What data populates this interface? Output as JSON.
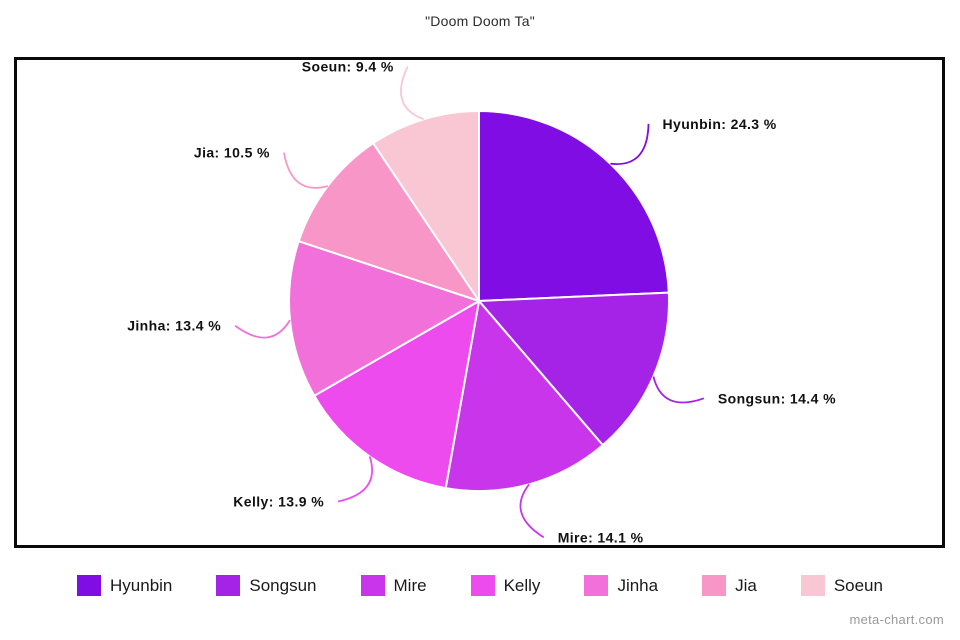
{
  "title": "\"Doom Doom Ta\"",
  "watermark": "meta-chart.com",
  "chart_data": {
    "type": "pie",
    "title": "\"Doom Doom Ta\"",
    "unit": "%",
    "start_angle_deg": 0,
    "direction": "clockwise",
    "legend_position": "bottom",
    "label_format": "{label}: {value} %",
    "slices": [
      {
        "label": "Hyunbin",
        "value": 24.3,
        "color": "#7F0DE4"
      },
      {
        "label": "Songsun",
        "value": 14.4,
        "color": "#A523E6"
      },
      {
        "label": "Mire",
        "value": 14.1,
        "color": "#C935EB"
      },
      {
        "label": "Kelly",
        "value": 13.9,
        "color": "#EE4BEF"
      },
      {
        "label": "Jinha",
        "value": 13.4,
        "color": "#F170DA"
      },
      {
        "label": "Jia",
        "value": 10.5,
        "color": "#F796C7"
      },
      {
        "label": "Soeun",
        "value": 9.4,
        "color": "#F9C6D3"
      }
    ]
  }
}
